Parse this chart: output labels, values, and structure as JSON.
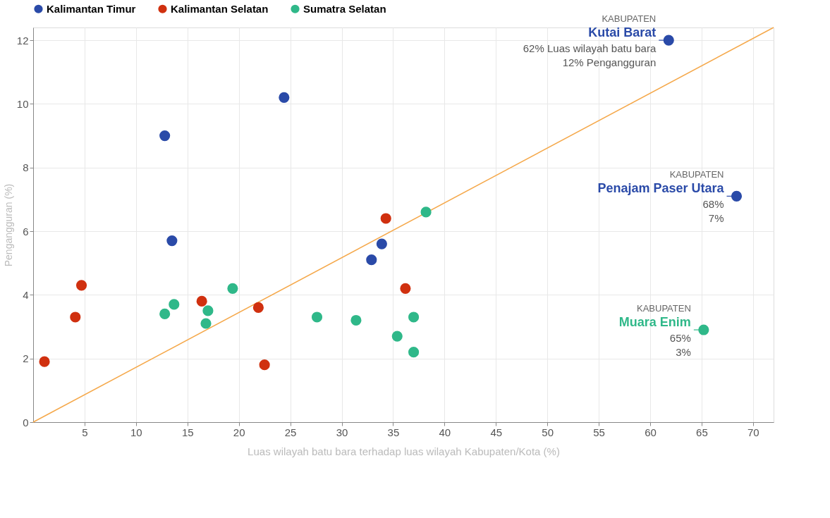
{
  "chart_data": {
    "type": "scatter",
    "xlabel": "Luas wilayah batu bara terhadap luas wilayah Kabupaten/Kota (%)",
    "ylabel": "Pengangguran (%)",
    "xlim": [
      0,
      72
    ],
    "ylim": [
      0,
      12.4
    ],
    "xticks": [
      5,
      10,
      15,
      20,
      25,
      30,
      35,
      40,
      45,
      50,
      55,
      60,
      65,
      70
    ],
    "yticks": [
      0,
      2,
      4,
      6,
      8,
      10,
      12
    ],
    "grid": true,
    "legend": "top",
    "marker": "circle",
    "series": [
      {
        "name": "Kalimantan Timur",
        "color": "#2a4aa8",
        "x": [
          61.8,
          24.4,
          12.8,
          13.5,
          33.9,
          32.9,
          68.4
        ],
        "values": [
          12.0,
          10.2,
          9.0,
          5.7,
          5.6,
          5.1,
          7.1
        ]
      },
      {
        "name": "Kalimantan Selatan",
        "color": "#d0300f",
        "x": [
          1.1,
          4.1,
          4.7,
          16.4,
          21.9,
          22.5,
          34.3,
          36.2
        ],
        "values": [
          1.9,
          3.3,
          4.3,
          3.8,
          3.6,
          1.8,
          6.4,
          4.2
        ]
      },
      {
        "name": "Sumatra Selatan",
        "color": "#2fb889",
        "x": [
          12.8,
          13.7,
          16.8,
          17.0,
          19.4,
          27.6,
          31.4,
          35.4,
          37.0,
          37.0,
          38.2,
          65.2
        ],
        "values": [
          3.4,
          3.7,
          3.1,
          3.5,
          4.2,
          3.3,
          3.2,
          2.7,
          2.2,
          3.3,
          6.6,
          2.9
        ]
      },
      {
        "type": "line",
        "marker": "none",
        "color": "#f5a84a",
        "x": [
          0,
          72
        ],
        "values": [
          0,
          12.4
        ]
      }
    ],
    "annotations": [
      {
        "text": "KABUPATEN\nKutai Barat\n62% Luas wilayah batu bara\n12% Pengangguran",
        "x": 61.8,
        "y": 12.0
      },
      {
        "text": "KABUPATEN\nPenajam Paser Utara\n68%\n7%",
        "x": 68.4,
        "y": 7.1
      },
      {
        "text": "KABUPATEN\nMuara Enim\n65%\n3%",
        "x": 65.2,
        "y": 2.9
      }
    ]
  }
}
